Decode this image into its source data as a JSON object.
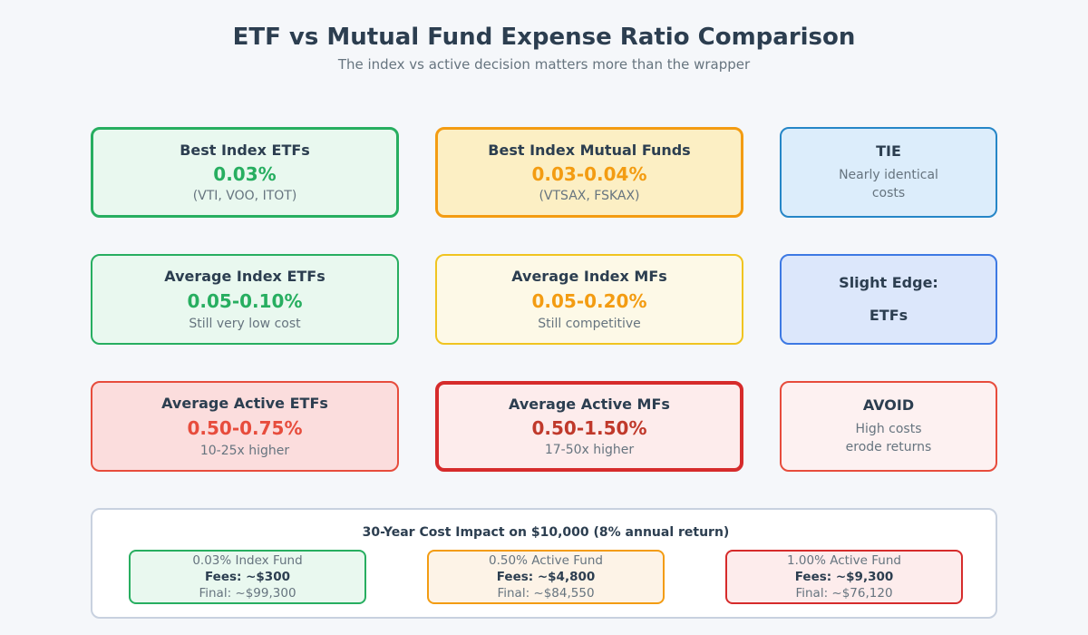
{
  "page": {
    "title": "ETF vs Mutual Fund Expense Ratio Comparison",
    "subtitle": "The index vs active decision matters more than the wrapper"
  },
  "colors": {
    "page_bg": "#f5f7fa",
    "text_dark": "#2c3e50",
    "text_gray": "#66747f",
    "green": "#27ae60",
    "orange": "#f39c12",
    "gold": "#f0c420",
    "blue": "#2586c7",
    "royal_blue": "#3d79e3",
    "red": "#e74c3c",
    "dark_red": "#d62b2b",
    "value_dark_red": "#c0392b",
    "panel_border": "#c8d1df"
  },
  "cards": {
    "best_index_etfs": {
      "title": "Best Index ETFs",
      "value": "0.03%",
      "sub": "(VTI, VOO, ITOT)"
    },
    "best_index_mfs": {
      "title": "Best Index Mutual Funds",
      "value": "0.03-0.04%",
      "sub": "(VTSAX, FSKAX)"
    },
    "tie": {
      "title": "TIE",
      "line1": "Nearly identical",
      "line2": "costs"
    },
    "avg_index_etfs": {
      "title": "Average Index ETFs",
      "value": "0.05-0.10%",
      "sub": "Still very low cost"
    },
    "avg_index_mfs": {
      "title": "Average Index MFs",
      "value": "0.05-0.20%",
      "sub": "Still competitive"
    },
    "slight_edge": {
      "line1": "Slight Edge:",
      "line2": "ETFs"
    },
    "avg_active_etfs": {
      "title": "Average Active ETFs",
      "value": "0.50-0.75%",
      "sub": "10-25x higher"
    },
    "avg_active_mfs": {
      "title": "Average Active MFs",
      "value": "0.50-1.50%",
      "sub": "17-50x higher"
    },
    "avoid": {
      "title": "AVOID",
      "line1": "High costs",
      "line2": "erode returns"
    }
  },
  "impact": {
    "title": "30-Year Cost Impact on $10,000 (8% annual return)",
    "boxes": [
      {
        "name": "0.03% Index Fund",
        "fees": "Fees: ~$300",
        "final": "Final: ~$99,300"
      },
      {
        "name": "0.50% Active Fund",
        "fees": "Fees: ~$4,800",
        "final": "Final: ~$84,550"
      },
      {
        "name": "1.00% Active Fund",
        "fees": "Fees: ~$9,300",
        "final": "Final: ~$76,120"
      }
    ]
  }
}
